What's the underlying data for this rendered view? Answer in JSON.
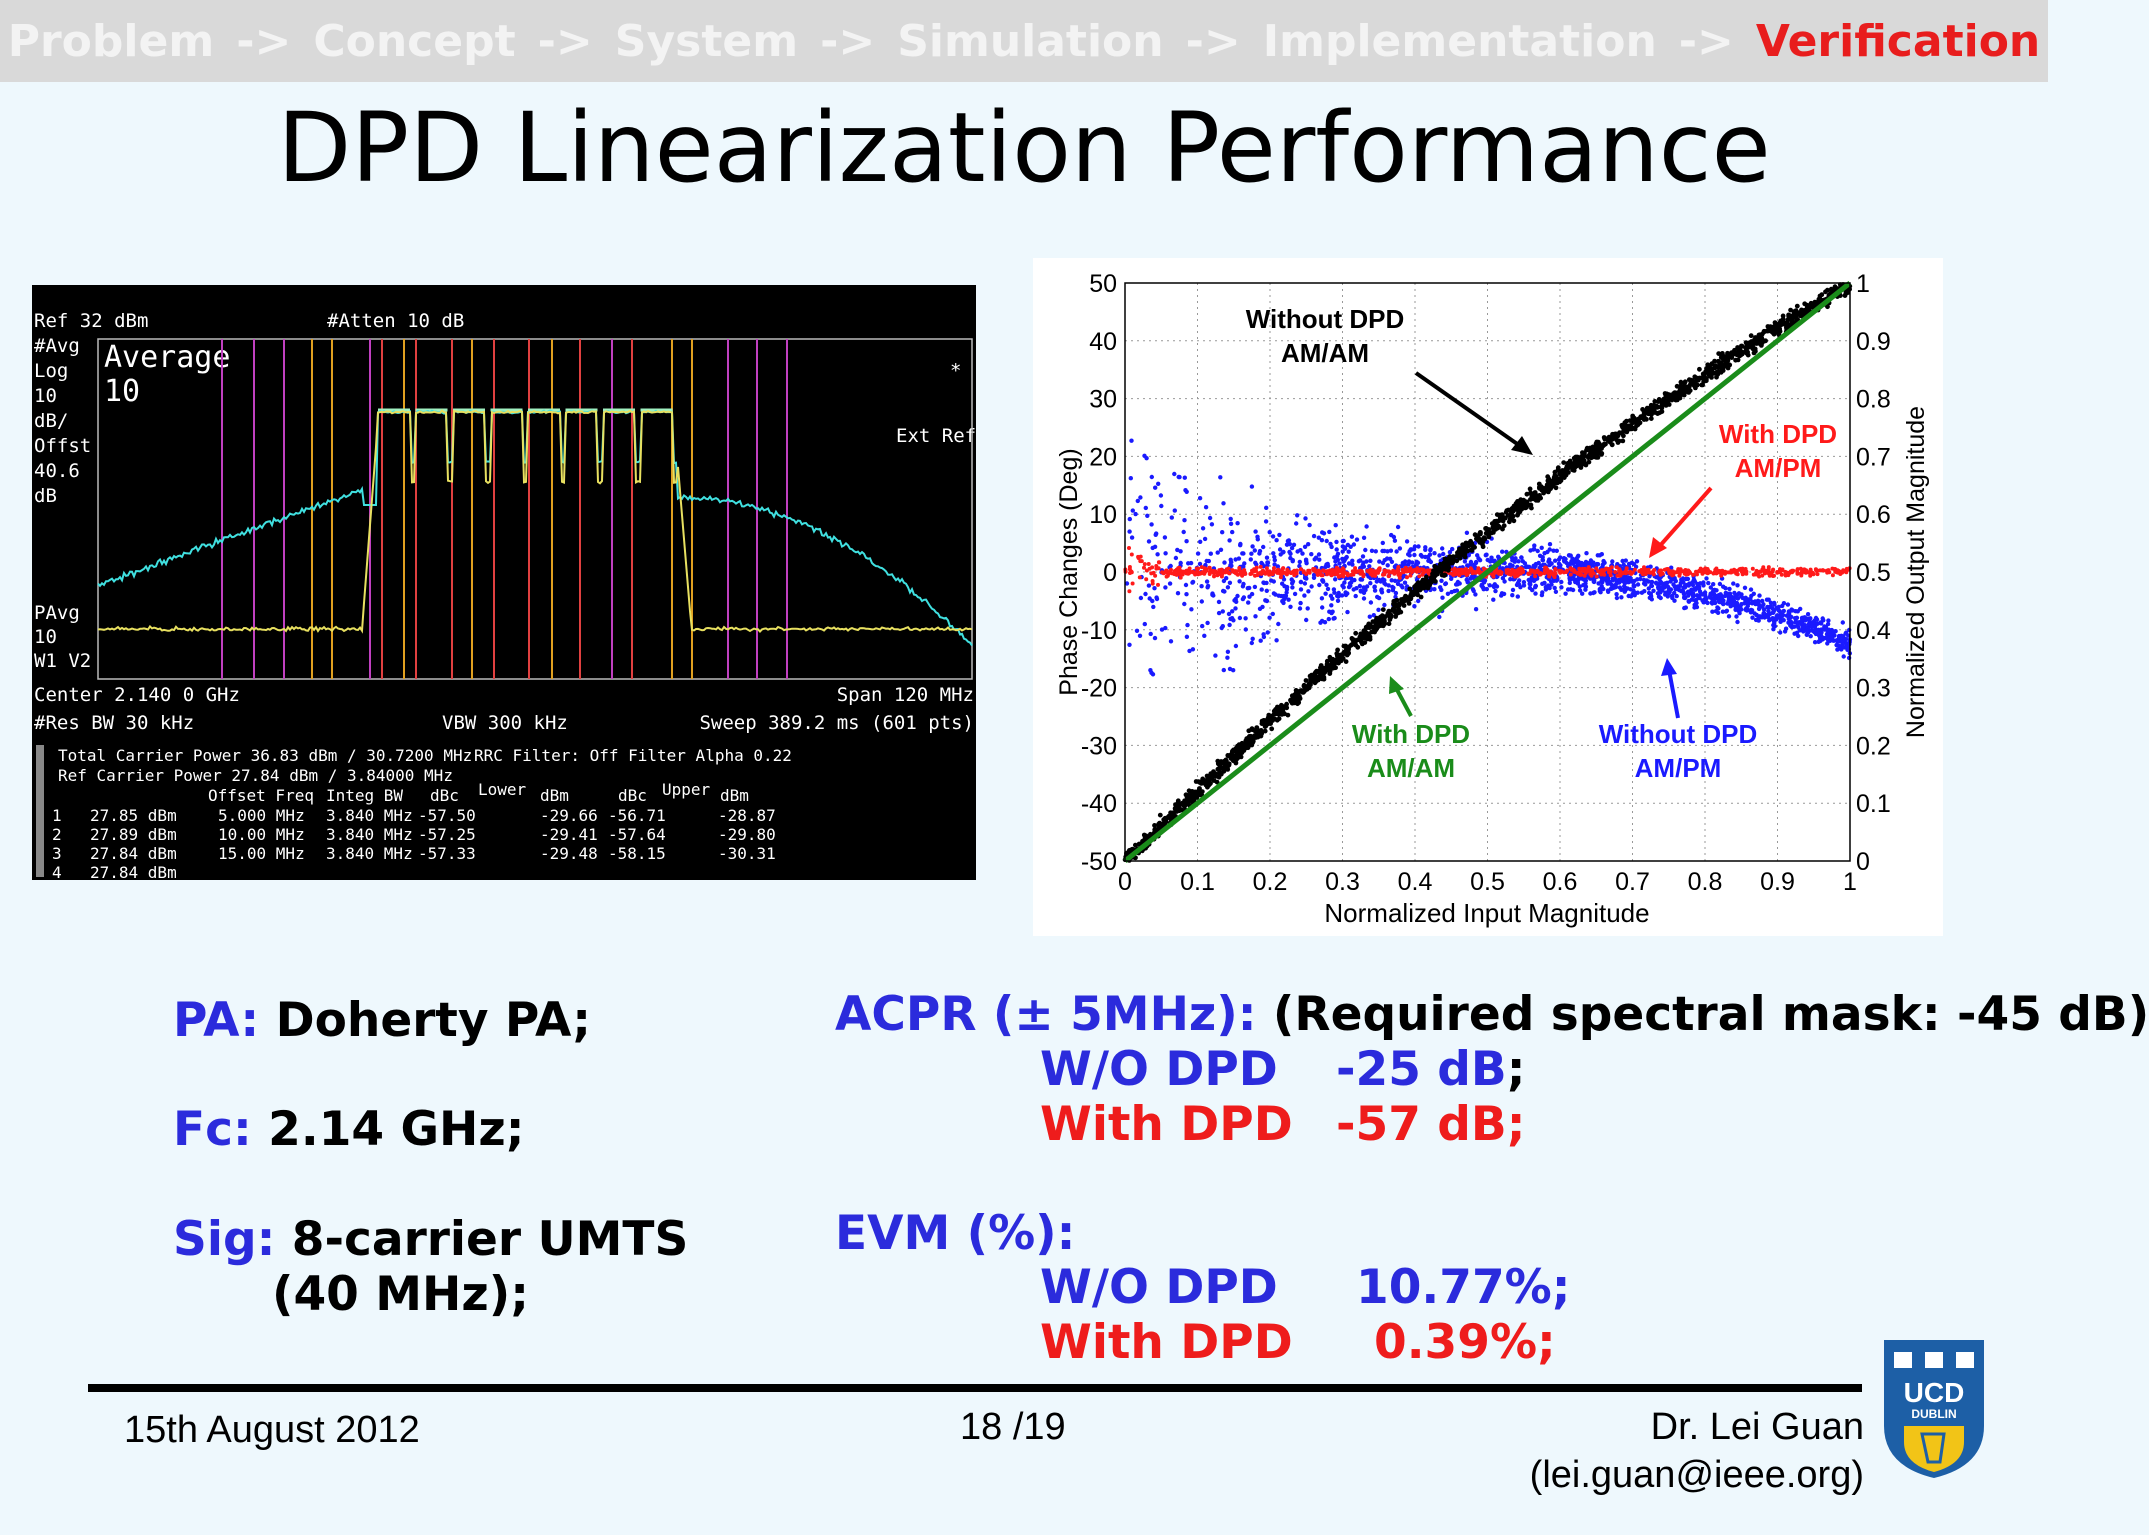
{
  "nav": {
    "items": [
      "Problem",
      "Concept",
      "System",
      "Simulation",
      "Implementation"
    ],
    "arrow": "->",
    "active": "Verification"
  },
  "title": "DPD Linearization Performance",
  "spectrum": {
    "ref": "Ref 32 dBm",
    "atten": "#Atten 10 dB",
    "avg": "#Avg",
    "log": "Log",
    "ten": "10",
    "dbdiv": "dB/",
    "offst": "Offst",
    "offval": "40.6",
    "db": "dB",
    "average_label": "Average",
    "average_count": "10",
    "marker": "*",
    "ext_ref": "Ext Ref",
    "pavg": "PAvg",
    "pavg_val": "10",
    "w1v2": "W1  V2",
    "center": "Center 2.140 0 GHz",
    "span": "Span 120 MHz",
    "res_bw": "#Res BW 30 kHz",
    "vbw": "VBW 300 kHz",
    "sweep": "Sweep 389.2 ms (601 pts)",
    "total_carrier": "Total Carrier Power  36.83 dBm / 30.7200 MHz",
    "rrc": "RRC Filter: Off  Filter Alpha  0.22",
    "ref_carrier": "Ref Carrier Power   27.84 dBm / 3.84000 MHz",
    "table_headers": [
      "Offset Freq",
      "Integ BW",
      "dBc",
      "Lower",
      "dBm",
      "dBc",
      "Upper",
      "dBm"
    ],
    "carriers": [
      {
        "n": "1",
        "power": "27.85 dBm"
      },
      {
        "n": "2",
        "power": "27.89 dBm"
      },
      {
        "n": "3",
        "power": "27.84 dBm"
      },
      {
        "n": "4",
        "power": "27.84 dBm"
      }
    ],
    "rows": [
      {
        "offset": "5.000 MHz",
        "bw": "3.840 MHz",
        "ldbc": "-57.50",
        "ldbm": "-29.66",
        "udbc": "-56.71",
        "udbm": "-28.87"
      },
      {
        "offset": "10.00 MHz",
        "bw": "3.840 MHz",
        "ldbc": "-57.25",
        "ldbm": "-29.41",
        "udbc": "-57.64",
        "udbm": "-29.80"
      },
      {
        "offset": "15.00 MHz",
        "bw": "3.840 MHz",
        "ldbc": "-57.33",
        "ldbm": "-29.48",
        "udbc": "-58.15",
        "udbm": "-30.31"
      }
    ]
  },
  "phase_plot": {
    "left_axis_label": "Phase Changes (Deg)",
    "right_axis_label": "Normalized Output Magnitude",
    "x_axis_label": "Normalized Input Magnitude",
    "left_ticks": [
      "50",
      "40",
      "30",
      "20",
      "10",
      "0",
      "-10",
      "-20",
      "-30",
      "-40",
      "-50"
    ],
    "right_ticks": [
      "1",
      "0.9",
      "0.8",
      "0.7",
      "0.6",
      "0.5",
      "0.4",
      "0.3",
      "0.2",
      "0.1",
      "0"
    ],
    "x_ticks": [
      "0",
      "0.1",
      "0.2",
      "0.3",
      "0.4",
      "0.5",
      "0.6",
      "0.7",
      "0.8",
      "0.9",
      "1"
    ],
    "annotations": {
      "without_amam_1": "Without DPD",
      "without_amam_2": "AM/AM",
      "with_ampm_1": "With DPD",
      "with_ampm_2": "AM/PM",
      "with_amam_1": "With DPD",
      "with_amam_2": "AM/AM",
      "without_ampm_1": "Without DPD",
      "without_ampm_2": "AM/PM"
    },
    "colors": {
      "without_ampm": "#1a1aff",
      "with_ampm": "#ff1a1a",
      "without_amam": "#000000",
      "with_amam": "#1a8c1a"
    }
  },
  "specs": {
    "pa_label": "PA:",
    "pa_value": "Doherty PA;",
    "fc_label": "Fc:",
    "fc_value": "2.14 GHz;",
    "sig_label": "Sig:",
    "sig_value_1": "8-carrier UMTS",
    "sig_value_2": "(40 MHz);"
  },
  "acpr": {
    "label": "ACPR (± 5MHz):",
    "requirement": "(Required spectral mask: -45 dB)",
    "wo_label": "W/O DPD",
    "wo_value": "-25 dB",
    "semicolon": ";",
    "with_label": "With DPD",
    "with_value": "-57 dB;"
  },
  "evm": {
    "label": "EVM (%):",
    "wo_label": "W/O DPD",
    "wo_value": "10.77%;",
    "with_label": "With DPD",
    "with_value": "0.39%;"
  },
  "footer": {
    "date": "15th August 2012",
    "page": "18 /19",
    "author": "Dr. Lei Guan",
    "email": "(lei.guan@ieee.org)"
  },
  "logo": {
    "line1": "UCD",
    "line2": "DUBLIN"
  }
}
